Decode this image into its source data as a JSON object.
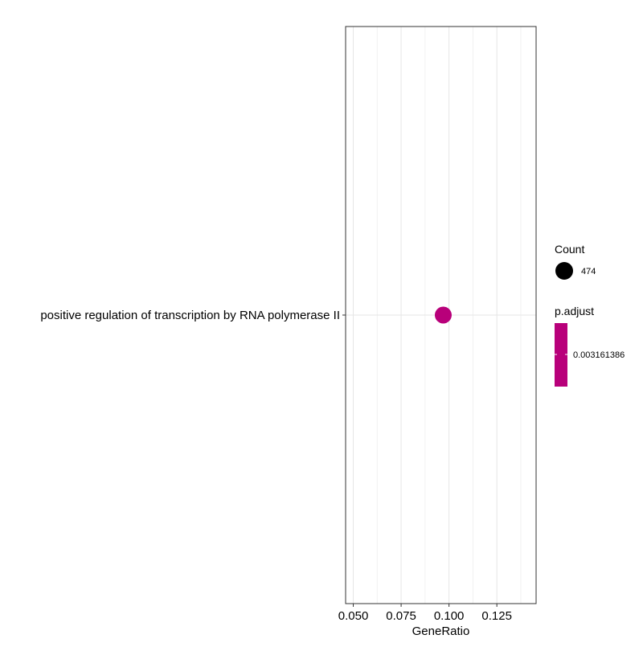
{
  "chart_data": {
    "type": "scatter",
    "title": "",
    "xlabel": "GeneRatio",
    "ylabel": "",
    "categories": [
      "positive regulation of transcription by RNA polymerase II"
    ],
    "points": [
      {
        "term": "positive regulation of transcription by RNA polymerase II",
        "gene_ratio": 0.097,
        "count": 474,
        "p_adjust": 0.003161386
      }
    ],
    "xlim": [
      0.046,
      0.1455
    ],
    "x_ticks": [
      0.05,
      0.075,
      0.1,
      0.125
    ],
    "x_tick_labels": [
      "0.050",
      "0.075",
      "0.100",
      "0.125"
    ],
    "x_minor_ticks": [
      0.0625,
      0.0875,
      0.1125,
      0.1375
    ],
    "grid": true,
    "legend_position": "right",
    "legend_size": {
      "title": "Count",
      "entries": [
        {
          "label": "474",
          "value": 474
        }
      ]
    },
    "legend_color": {
      "title": "p.adjust",
      "entries": [
        {
          "label": "0.003161386",
          "value": 0.003161386
        }
      ]
    },
    "colors": {
      "point": "#B8007A",
      "size_key": "#000000",
      "grid_major": "#E6E6E6",
      "grid_minor": "#F0F0F0",
      "panel_border": "#333333",
      "text": "#000000"
    }
  }
}
